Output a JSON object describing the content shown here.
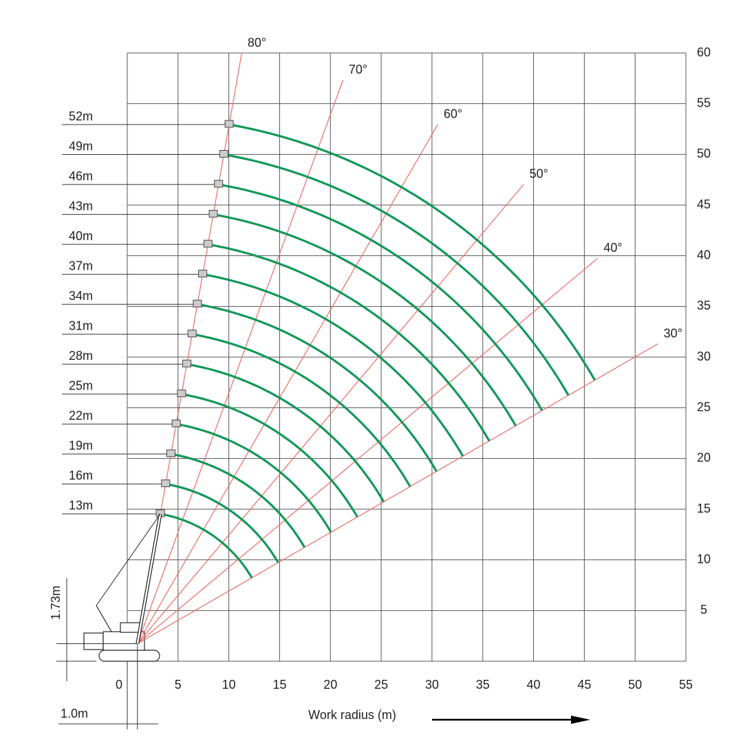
{
  "chart_data": {
    "type": "working-range",
    "x_label": "Work radius (m)",
    "xlim": [
      0,
      55
    ],
    "xticks": [
      0,
      5,
      10,
      15,
      20,
      25,
      30,
      35,
      40,
      45,
      50,
      55
    ],
    "ylim": [
      0,
      60
    ],
    "yticks": [
      5,
      10,
      15,
      20,
      25,
      30,
      35,
      40,
      45,
      50,
      55,
      60
    ],
    "grid": true,
    "boom_lengths": {
      "values": [
        13,
        16,
        19,
        22,
        25,
        28,
        31,
        34,
        37,
        40,
        43,
        46,
        49,
        52
      ],
      "value_labels": [
        "13m",
        "16m",
        "19m",
        "22m",
        "25m",
        "28m",
        "31m",
        "34m",
        "37m",
        "40m",
        "43m",
        "46m",
        "49m",
        "52m"
      ],
      "color": "#12975a"
    },
    "angles": {
      "values": [
        30,
        40,
        50,
        60,
        70,
        80
      ],
      "value_labels": [
        "30°",
        "40°",
        "50°",
        "60°",
        "70°",
        "80°"
      ],
      "color": "#ec6a62"
    },
    "pivot_offset": {
      "value": 1.0,
      "label": "1.0m"
    },
    "pivot_height": {
      "value": 1.73,
      "label": "1.73m"
    }
  }
}
